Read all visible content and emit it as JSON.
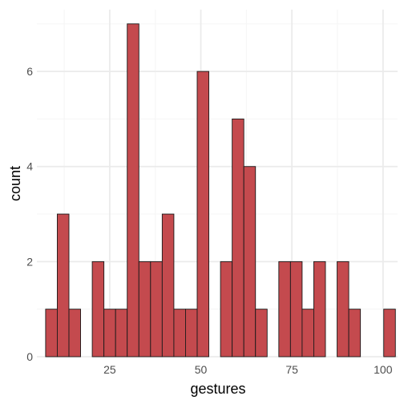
{
  "chart_data": {
    "type": "bar",
    "subtype": "histogram",
    "xlabel": "gestures",
    "ylabel": "count",
    "xlim": [
      5.0,
      104.0
    ],
    "ylim": [
      0,
      7.3
    ],
    "x_ticks": [
      25,
      50,
      75,
      100
    ],
    "y_ticks": [
      0,
      2,
      4,
      6
    ],
    "grid": true,
    "bin_width": 3.2,
    "bins": [
      {
        "start": 7.4,
        "count": 1
      },
      {
        "start": 10.6,
        "count": 3
      },
      {
        "start": 13.8,
        "count": 1
      },
      {
        "start": 17.0,
        "count": 0
      },
      {
        "start": 20.2,
        "count": 2
      },
      {
        "start": 23.4,
        "count": 1
      },
      {
        "start": 26.6,
        "count": 1
      },
      {
        "start": 29.8,
        "count": 7
      },
      {
        "start": 33.0,
        "count": 2
      },
      {
        "start": 36.2,
        "count": 2
      },
      {
        "start": 39.4,
        "count": 3
      },
      {
        "start": 42.6,
        "count": 1
      },
      {
        "start": 45.8,
        "count": 1
      },
      {
        "start": 49.0,
        "count": 6
      },
      {
        "start": 52.2,
        "count": 0
      },
      {
        "start": 55.4,
        "count": 2
      },
      {
        "start": 58.6,
        "count": 5
      },
      {
        "start": 61.8,
        "count": 4
      },
      {
        "start": 65.0,
        "count": 1
      },
      {
        "start": 68.2,
        "count": 0
      },
      {
        "start": 71.4,
        "count": 2
      },
      {
        "start": 74.6,
        "count": 2
      },
      {
        "start": 77.8,
        "count": 1
      },
      {
        "start": 81.0,
        "count": 2
      },
      {
        "start": 84.2,
        "count": 0
      },
      {
        "start": 87.4,
        "count": 2
      },
      {
        "start": 90.6,
        "count": 1
      },
      {
        "start": 93.8,
        "count": 0
      },
      {
        "start": 97.0,
        "count": 0
      },
      {
        "start": 100.2,
        "count": 1
      }
    ],
    "colors": {
      "fill": "#c44a4e",
      "stroke": "#1a1a1a",
      "grid_major": "#ebebeb",
      "grid_minor": "#f5f5f5",
      "tick_text": "#4d4d4d"
    }
  }
}
